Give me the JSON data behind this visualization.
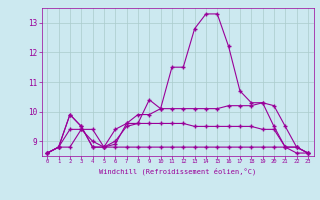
{
  "background_color": "#cce9f0",
  "grid_color": "#aacccc",
  "line_color": "#990099",
  "x": [
    0,
    1,
    2,
    3,
    4,
    5,
    6,
    7,
    8,
    9,
    10,
    11,
    12,
    13,
    14,
    15,
    16,
    17,
    18,
    19,
    20,
    21,
    22,
    23
  ],
  "line1": [
    8.6,
    8.8,
    9.9,
    9.5,
    8.8,
    8.8,
    8.9,
    9.6,
    9.6,
    10.4,
    10.1,
    11.5,
    11.5,
    12.8,
    13.3,
    13.3,
    12.2,
    10.7,
    10.3,
    10.3,
    9.5,
    8.8,
    8.8,
    8.6
  ],
  "line2": [
    8.6,
    8.8,
    9.9,
    9.5,
    8.8,
    8.8,
    9.4,
    9.6,
    9.9,
    9.9,
    10.1,
    10.1,
    10.1,
    10.1,
    10.1,
    10.1,
    10.2,
    10.2,
    10.2,
    10.3,
    10.2,
    9.5,
    8.8,
    8.6
  ],
  "line3": [
    8.6,
    8.8,
    9.4,
    9.4,
    9.0,
    8.8,
    9.0,
    9.5,
    9.6,
    9.6,
    9.6,
    9.6,
    9.6,
    9.5,
    9.5,
    9.5,
    9.5,
    9.5,
    9.5,
    9.4,
    9.4,
    8.8,
    8.8,
    8.6
  ],
  "line4": [
    8.6,
    8.8,
    8.8,
    9.4,
    9.4,
    8.8,
    8.8,
    8.8,
    8.8,
    8.8,
    8.8,
    8.8,
    8.8,
    8.8,
    8.8,
    8.8,
    8.8,
    8.8,
    8.8,
    8.8,
    8.8,
    8.8,
    8.6,
    8.6
  ],
  "ylim": [
    8.5,
    13.5
  ],
  "yticks": [
    9,
    10,
    11,
    12,
    13
  ],
  "xticks": [
    0,
    1,
    2,
    3,
    4,
    5,
    6,
    7,
    8,
    9,
    10,
    11,
    12,
    13,
    14,
    15,
    16,
    17,
    18,
    19,
    20,
    21,
    22,
    23
  ],
  "xlabel": "Windchill (Refroidissement éolien,°C)"
}
